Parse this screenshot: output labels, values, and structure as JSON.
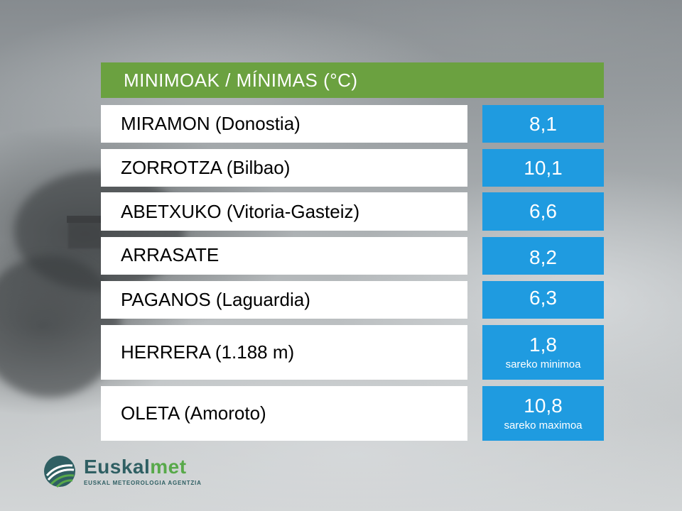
{
  "title": "MINIMOAK / MÍNIMAS (°C)",
  "colors": {
    "title_bar": "#6ba140",
    "value_box": "#1f9be0",
    "name_box": "#ffffff"
  },
  "stations": [
    {
      "name": "MIRAMON (Donostia)",
      "value": "8,1",
      "note": ""
    },
    {
      "name": "ZORROTZA (Bilbao)",
      "value": "10,1",
      "note": ""
    },
    {
      "name": "ABETXUKO (Vitoria-Gasteiz)",
      "value": "6,6",
      "note": ""
    },
    {
      "name": "ARRASATE",
      "value": "8,2",
      "note": ""
    },
    {
      "name": "PAGANOS (Laguardia)",
      "value": "6,3",
      "note": ""
    },
    {
      "name": "HERRERA (1.188 m)",
      "value": "1,8",
      "note": "sareko minimoa"
    },
    {
      "name": "OLETA (Amoroto)",
      "value": "10,8",
      "note": "sareko maximoa"
    }
  ],
  "logo": {
    "name_part1": "Euskal",
    "name_part2": "met",
    "tagline": "EUSKAL METEOROLOGIA AGENTZIA",
    "icon": "euskalmet-logo-icon"
  }
}
